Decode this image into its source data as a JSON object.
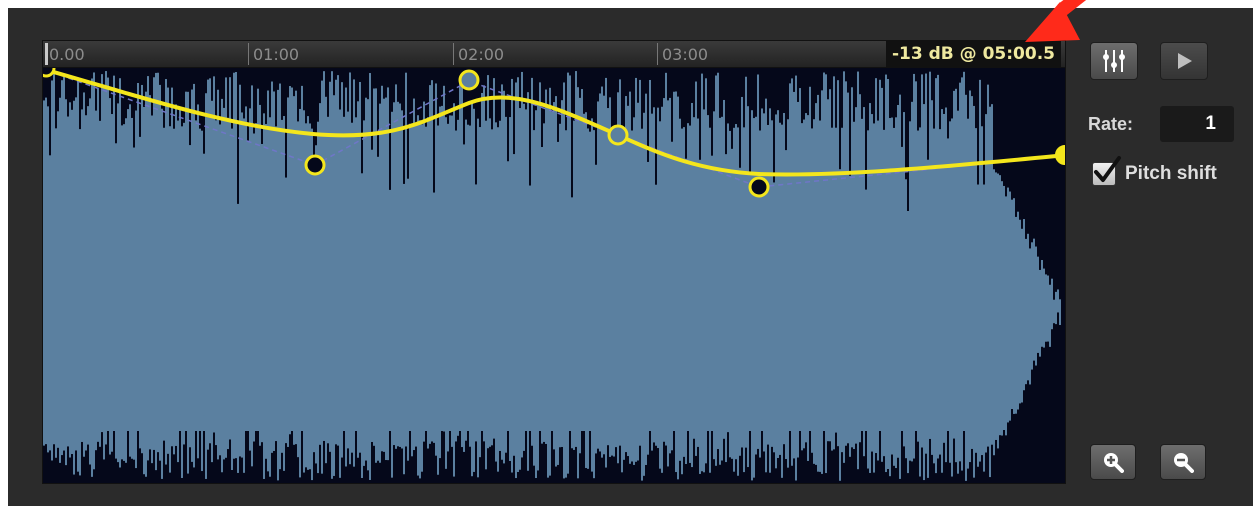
{
  "timeline": {
    "ticks": [
      "0.00",
      "01:00",
      "02:00",
      "03:00"
    ],
    "level_readout": "-13 dB @ 05:00.5"
  },
  "controls": {
    "equalizer_icon": "sliders-icon",
    "play_icon": "play-icon",
    "rate_label": "Rate:",
    "rate_value": "1",
    "pitch_shift_label": "Pitch shift",
    "pitch_shift_checked": true,
    "zoom_in_icon": "zoom-in-icon",
    "zoom_out_icon": "zoom-out-icon"
  },
  "colors": {
    "waveform": "#5b80a0",
    "envelope": "#f4e61c",
    "background": "#05081a",
    "annotation_arrow": "#ff2a1a"
  }
}
